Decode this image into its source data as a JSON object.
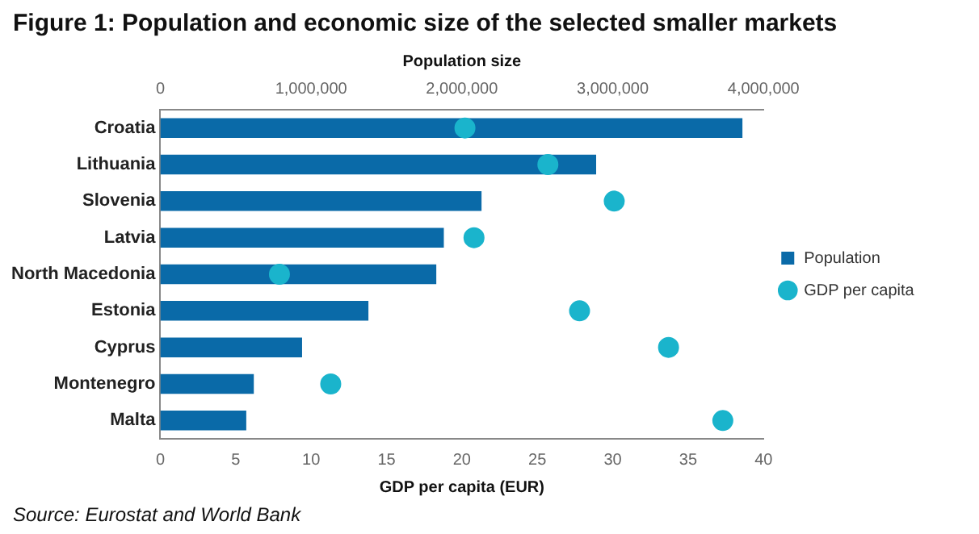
{
  "chart_data": {
    "type": "bar",
    "orientation": "horizontal",
    "title": "Figure 1: Population and economic size of the selected smaller markets",
    "categories": [
      "Croatia",
      "Lithuania",
      "Slovenia",
      "Latvia",
      "North Macedonia",
      "Estonia",
      "Cyprus",
      "Montenegro",
      "Malta"
    ],
    "series": [
      {
        "name": "Population",
        "axis": "x2",
        "color": "#0a6aa8",
        "values": [
          3860000,
          2890000,
          2130000,
          1880000,
          1830000,
          1380000,
          940000,
          620000,
          570000
        ]
      },
      {
        "name": "GDP per capita",
        "type": "scatter",
        "color": "#1ab4cc",
        "values": [
          20.2,
          25.7,
          30.1,
          20.8,
          7.9,
          27.8,
          33.7,
          11.3,
          37.3
        ]
      }
    ],
    "xlabel": "GDP per capita (EUR)",
    "xlim": [
      0,
      40
    ],
    "xticks": [
      0,
      5,
      10,
      15,
      20,
      25,
      30,
      35,
      40
    ],
    "x2label": "Population size",
    "x2lim": [
      0,
      4000000
    ],
    "x2ticks": [
      0,
      {
        "value": 1000000,
        "label": "1,000,000"
      },
      {
        "value": 2000000,
        "label": "2,000,000"
      },
      {
        "value": 3000000,
        "label": "3,000,000"
      },
      {
        "value": 4000000,
        "label": "4,000,000"
      }
    ],
    "marker": "circle",
    "grid": false,
    "legend": "right",
    "annotations": [
      "Source: Eurostat and World Bank"
    ]
  }
}
